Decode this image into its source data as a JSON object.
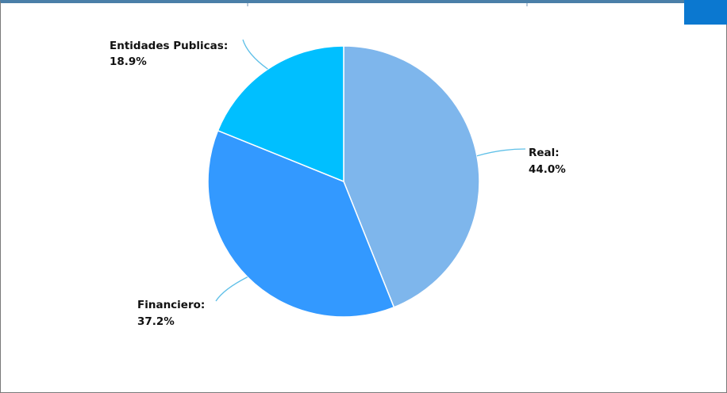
{
  "chart_data": {
    "type": "pie",
    "title": "",
    "slices": [
      {
        "label": "Real:",
        "value_label": "44.0%",
        "value": 44.0,
        "color": "#7eb6ec"
      },
      {
        "label": "Financiero:",
        "value_label": "37.2%",
        "value": 37.2,
        "color": "#3399ff"
      },
      {
        "label": "Entidades Publicas:",
        "value_label": "18.9%",
        "value": 18.9,
        "color": "#00bfff"
      }
    ],
    "start_angle": "12 o'clock",
    "direction": "clockwise",
    "slice_border_color": "#ffffff",
    "leader_line_color": "#5fc0e8",
    "legend": "none"
  },
  "window": {
    "frame_color": "#4a7fa8",
    "corner_tab_color": "#0b78d0"
  }
}
